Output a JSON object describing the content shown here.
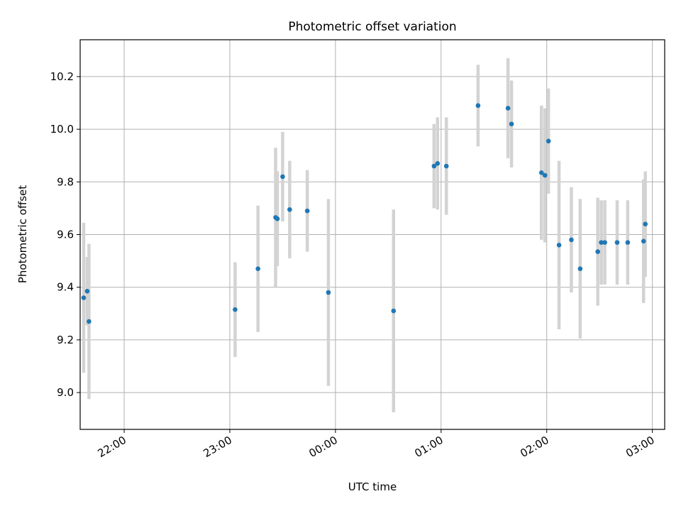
{
  "chart_data": {
    "type": "scatter",
    "title": "Photometric offset variation",
    "xlabel": "UTC time",
    "ylabel": "Photometric offset",
    "x_is_time": true,
    "xlim": [
      "21:35",
      "03:07"
    ],
    "ylim": [
      8.86,
      10.34
    ],
    "x_ticks": [
      "22:00",
      "23:00",
      "00:00",
      "01:00",
      "02:00",
      "03:00"
    ],
    "y_ticks": [
      9.0,
      9.2,
      9.4,
      9.6,
      9.8,
      10.0,
      10.2
    ],
    "grid": true,
    "point_color": "#1f77b4",
    "errorbar_color": "#d3d3d3",
    "series": [
      {
        "points": [
          {
            "t": "21:37",
            "y": 9.36,
            "err": 0.285
          },
          {
            "t": "21:39",
            "y": 9.385,
            "err": 0.13
          },
          {
            "t": "21:40",
            "y": 9.27,
            "err": 0.295
          },
          {
            "t": "23:03",
            "y": 9.315,
            "err": 0.18
          },
          {
            "t": "23:16",
            "y": 9.47,
            "err": 0.24
          },
          {
            "t": "23:26",
            "y": 9.665,
            "err": 0.265
          },
          {
            "t": "23:27",
            "y": 9.66,
            "err": 0.18
          },
          {
            "t": "23:30",
            "y": 9.82,
            "err": 0.17
          },
          {
            "t": "23:34",
            "y": 9.695,
            "err": 0.185
          },
          {
            "t": "23:44",
            "y": 9.69,
            "err": 0.155
          },
          {
            "t": "23:56",
            "y": 9.38,
            "err": 0.355
          },
          {
            "t": "00:33",
            "y": 9.31,
            "err": 0.385
          },
          {
            "t": "00:56",
            "y": 9.86,
            "err": 0.16
          },
          {
            "t": "00:58",
            "y": 9.87,
            "err": 0.175
          },
          {
            "t": "01:03",
            "y": 9.86,
            "err": 0.185
          },
          {
            "t": "01:21",
            "y": 10.09,
            "err": 0.155
          },
          {
            "t": "01:38",
            "y": 10.08,
            "err": 0.19
          },
          {
            "t": "01:40",
            "y": 10.02,
            "err": 0.165
          },
          {
            "t": "01:57",
            "y": 9.835,
            "err": 0.255
          },
          {
            "t": "01:59",
            "y": 9.825,
            "err": 0.255
          },
          {
            "t": "02:01",
            "y": 9.955,
            "err": 0.2
          },
          {
            "t": "02:07",
            "y": 9.56,
            "err": 0.32
          },
          {
            "t": "02:14",
            "y": 9.58,
            "err": 0.2
          },
          {
            "t": "02:19",
            "y": 9.47,
            "err": 0.265
          },
          {
            "t": "02:29",
            "y": 9.535,
            "err": 0.205
          },
          {
            "t": "02:31",
            "y": 9.57,
            "err": 0.16
          },
          {
            "t": "02:33",
            "y": 9.57,
            "err": 0.16
          },
          {
            "t": "02:40",
            "y": 9.57,
            "err": 0.16
          },
          {
            "t": "02:46",
            "y": 9.57,
            "err": 0.16
          },
          {
            "t": "02:55",
            "y": 9.575,
            "err": 0.235
          },
          {
            "t": "02:56",
            "y": 9.64,
            "err": 0.2
          }
        ]
      }
    ]
  }
}
